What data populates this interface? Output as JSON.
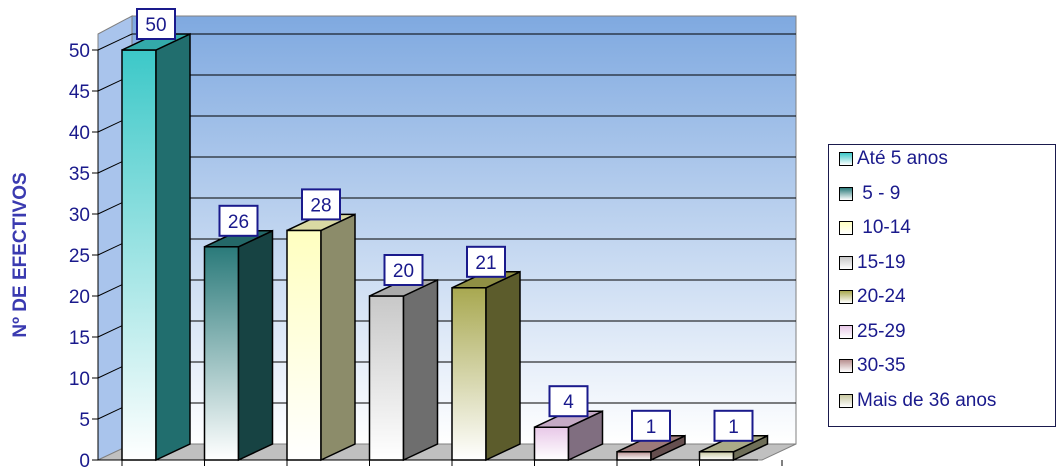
{
  "chart_data": {
    "type": "bar",
    "ylabel": "Nº DE EFECTIVOS",
    "xlabel": "",
    "ylim": [
      0,
      50
    ],
    "yticks": [
      0,
      5,
      10,
      15,
      20,
      25,
      30,
      35,
      40,
      45,
      50
    ],
    "grid": true,
    "legend_position": "right",
    "categories": [
      "Até 5 anos",
      " 5 - 9",
      " 10-14",
      "15-19",
      "20-24",
      "25-29",
      "30-35",
      "Mais de 36 anos"
    ],
    "values": [
      50,
      26,
      28,
      20,
      21,
      4,
      1,
      1
    ],
    "data_labels": [
      "50",
      "26",
      "28",
      "20",
      "21",
      "4",
      "1",
      "1"
    ],
    "colors": [
      "#3cc8c8",
      "#2a7a7a",
      "#ffffc0",
      "#c8c8c8",
      "#a8a850",
      "#e8c8e8",
      "#b89090",
      "#c8c8a0"
    ]
  }
}
